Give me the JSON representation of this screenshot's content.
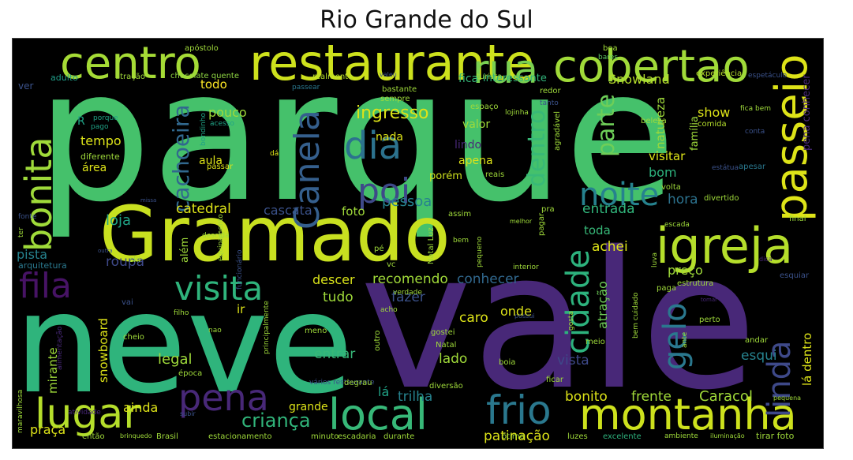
{
  "title": "Rio Grande do Sul",
  "words": [
    "parque",
    "vale",
    "neve",
    "Gramado",
    "restaurante",
    "centro",
    "rua",
    "cobertao",
    "passeio",
    "igreja",
    "noite",
    "dia",
    "poi",
    "Canela",
    "montanha",
    "local",
    "lugar",
    "pena",
    "frio",
    "bonita",
    "fila",
    "visita",
    "cidade",
    "gelo",
    "linda",
    "cachoeira",
    "parte",
    "dentro",
    "ingresso",
    "criança",
    "catedral",
    "cascata",
    "foto",
    "pessoa",
    "entrada",
    "hora",
    "loja",
    "pista",
    "roupa",
    "recomendo",
    "conhecer",
    "descer",
    "tudo",
    "fazer",
    "caro",
    "onde",
    "vista",
    "atração",
    "legal",
    "entrar",
    "lado",
    "trilha",
    "bonito",
    "frente",
    "Caracol",
    "patinação",
    "praça",
    "ainda",
    "grande",
    "lá",
    "esqui",
    "lá dentro",
    "snowboard",
    "mirante",
    "todo",
    "adulto",
    "ver",
    "atração",
    "chocolate quente",
    "realmente",
    "apóstolo",
    "turista",
    "interessante",
    "Snowland",
    "experiência",
    "espetáculo",
    "boa",
    "bares",
    "fica",
    "valeu",
    "passear",
    "bastante",
    "sempre",
    "redor",
    "espaço",
    "tanto",
    "show",
    "comida",
    "pena conhecer",
    "beleza",
    "família",
    "natureza",
    "lojinha",
    "agradável",
    "fica bem",
    "nada",
    "valor",
    "lindo",
    "apena",
    "porém",
    "reais",
    "visitar",
    "bom",
    "pouco",
    "acesso",
    "bondinho",
    "porque",
    "pago",
    "R",
    "tempo",
    "diferente",
    "área",
    "aula",
    "dá",
    "passar",
    "conta",
    "estátua",
    "apesar",
    "volta",
    "divertido",
    "missa",
    "fonte",
    "ter",
    "arquitetura",
    "outra",
    "ski",
    "vai",
    "além",
    "descida",
    "equipamento",
    "funcionário",
    "pé",
    "vc",
    "Natal Luz",
    "pequeno",
    "pra",
    "assim",
    "pagar",
    "bem",
    "final",
    "escada",
    "toda",
    "achei",
    "preço",
    "interior",
    "luva",
    "dica",
    "estrutura",
    "esquiar",
    "paga",
    "bem cuidado",
    "tomar",
    "gosta",
    "verdade",
    "acho",
    "possui",
    "perto",
    "ante",
    "andar",
    "meio",
    "Natal",
    "gostei",
    "boia",
    "época",
    "alimentação",
    "maravilhosa",
    "atividade",
    "subir",
    "cheio",
    "filho",
    "nao",
    "principalmente",
    "meno",
    "outro",
    "vários restaurante",
    "degrau",
    "diversão",
    "ficar",
    "pequena",
    "ambiente",
    "iluminação",
    "tirar foto",
    "excelente",
    "luzes",
    "ótimo",
    "durante",
    "escadaria",
    "minuto",
    "estacionamento",
    "Brasil",
    "brinquedo",
    "então",
    "ir",
    "melhor"
  ]
}
